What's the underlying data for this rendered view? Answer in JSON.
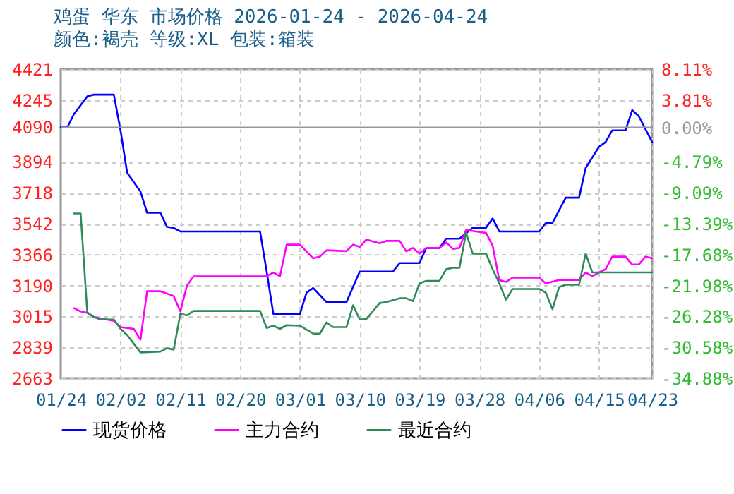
{
  "chart_data": {
    "type": "line",
    "title": "鸡蛋 华东 市场价格 2026-01-24 - 2026-04-24",
    "subtitle": "颜色:褐壳 等级:XL 包装:箱装",
    "xlim": [
      "2026-01-24",
      "2026-04-23"
    ],
    "xticks": [
      {
        "value": "2026-01-24",
        "label": "01/24"
      },
      {
        "value": "2026-02-02",
        "label": "02/02"
      },
      {
        "value": "2026-02-11",
        "label": "02/11"
      },
      {
        "value": "2026-02-20",
        "label": "02/20"
      },
      {
        "value": "2026-03-01",
        "label": "03/01"
      },
      {
        "value": "2026-03-10",
        "label": "03/10"
      },
      {
        "value": "2026-03-19",
        "label": "03/19"
      },
      {
        "value": "2026-03-28",
        "label": "03/28"
      },
      {
        "value": "2026-04-06",
        "label": "04/06"
      },
      {
        "value": "2026-04-15",
        "label": "04/15"
      },
      {
        "value": "2026-04-23",
        "label": "04/23"
      }
    ],
    "ylim": [
      2663,
      4421
    ],
    "yticks": [
      2663,
      2839,
      3015,
      3190,
      3366,
      3542,
      3718,
      3894,
      4090,
      4245,
      4421
    ],
    "y2lim": [
      -34.88,
      8.11
    ],
    "y2ticks": [
      {
        "value": -34.88,
        "label": "-34.88%"
      },
      {
        "value": -30.58,
        "label": "-30.58%"
      },
      {
        "value": -26.28,
        "label": "-26.28%"
      },
      {
        "value": -21.98,
        "label": "-21.98%"
      },
      {
        "value": -17.68,
        "label": "-17.68%"
      },
      {
        "value": -13.39,
        "label": "-13.39%"
      },
      {
        "value": -9.09,
        "label": "-9.09%"
      },
      {
        "value": -4.79,
        "label": "-4.79%"
      },
      {
        "value": 0,
        "label": "0.00%"
      },
      {
        "value": 3.81,
        "label": "3.81%"
      },
      {
        "value": 8.11,
        "label": "8.11%"
      }
    ],
    "ref_lines": [
      {
        "axis": "y2",
        "value": 0,
        "color": "#999999"
      }
    ],
    "grid": true,
    "legend": "bottom",
    "series": [
      {
        "name": "现货价格",
        "color": "#0000ff",
        "x": [
          "2026-01-24",
          "2026-01-25",
          "2026-01-26",
          "2026-01-28",
          "2026-01-29",
          "2026-02-01",
          "2026-02-02",
          "2026-02-03",
          "2026-02-05",
          "2026-02-06",
          "2026-02-08",
          "2026-02-09",
          "2026-02-10",
          "2026-02-11",
          "2026-02-23",
          "2026-02-24",
          "2026-02-25",
          "2026-03-01",
          "2026-03-02",
          "2026-03-03",
          "2026-03-05",
          "2026-03-08",
          "2026-03-10",
          "2026-03-15",
          "2026-03-16",
          "2026-03-19",
          "2026-03-20",
          "2026-03-22",
          "2026-03-23",
          "2026-03-25",
          "2026-03-27",
          "2026-03-29",
          "2026-03-30",
          "2026-03-31",
          "2026-04-06",
          "2026-04-07",
          "2026-04-08",
          "2026-04-10",
          "2026-04-12",
          "2026-04-13",
          "2026-04-15",
          "2026-04-16",
          "2026-04-17",
          "2026-04-19",
          "2026-04-20",
          "2026-04-21",
          "2026-04-23"
        ],
        "values": [
          4090,
          4090,
          4166,
          4266,
          4276,
          4276,
          4073,
          3832,
          3725,
          3604,
          3604,
          3524,
          3518,
          3498,
          3498,
          3270,
          3029,
          3029,
          3150,
          3176,
          3096,
          3096,
          3270,
          3270,
          3318,
          3318,
          3404,
          3404,
          3457,
          3457,
          3519,
          3519,
          3572,
          3498,
          3498,
          3546,
          3546,
          3690,
          3690,
          3859,
          3979,
          4006,
          4073,
          4073,
          4188,
          4153,
          4006
        ]
      },
      {
        "name": "主力合约",
        "color": "#ff00ff",
        "x": [
          "2026-01-26",
          "2026-01-27",
          "2026-01-28",
          "2026-01-29",
          "2026-02-01",
          "2026-02-02",
          "2026-02-04",
          "2026-02-05",
          "2026-02-06",
          "2026-02-08",
          "2026-02-10",
          "2026-02-11",
          "2026-02-12",
          "2026-02-13",
          "2026-02-24",
          "2026-02-25",
          "2026-02-26",
          "2026-02-27",
          "2026-03-01",
          "2026-03-03",
          "2026-03-04",
          "2026-03-05",
          "2026-03-08",
          "2026-03-09",
          "2026-03-10",
          "2026-03-11",
          "2026-03-13",
          "2026-03-14",
          "2026-03-16",
          "2026-03-17",
          "2026-03-18",
          "2026-03-19",
          "2026-03-20",
          "2026-03-22",
          "2026-03-23",
          "2026-03-24",
          "2026-03-25",
          "2026-03-26",
          "2026-03-29",
          "2026-03-30",
          "2026-03-31",
          "2026-04-01",
          "2026-04-02",
          "2026-04-06",
          "2026-04-07",
          "2026-04-09",
          "2026-04-12",
          "2026-04-13",
          "2026-04-14",
          "2026-04-15",
          "2026-04-16",
          "2026-04-17",
          "2026-04-19",
          "2026-04-20",
          "2026-04-21",
          "2026-04-22",
          "2026-04-23"
        ],
        "values": [
          3062,
          3043,
          3035,
          3011,
          2989,
          2954,
          2944,
          2882,
          3158,
          3158,
          3131,
          3043,
          3190,
          3243,
          3243,
          3265,
          3243,
          3423,
          3423,
          3345,
          3355,
          3391,
          3386,
          3423,
          3410,
          3452,
          3431,
          3444,
          3444,
          3385,
          3404,
          3372,
          3404,
          3404,
          3436,
          3399,
          3404,
          3506,
          3490,
          3417,
          3222,
          3211,
          3235,
          3235,
          3203,
          3222,
          3222,
          3265,
          3243,
          3265,
          3283,
          3355,
          3355,
          3310,
          3310,
          3355,
          3345
        ]
      },
      {
        "name": "最近合约",
        "color": "#2e8b57",
        "x": [
          "2026-01-26",
          "2026-01-27",
          "2026-01-28",
          "2026-01-29",
          "2026-01-30",
          "2026-02-01",
          "2026-02-02",
          "2026-02-03",
          "2026-02-05",
          "2026-02-08",
          "2026-02-09",
          "2026-02-10",
          "2026-02-11",
          "2026-02-12",
          "2026-02-13",
          "2026-02-23",
          "2026-02-24",
          "2026-02-25",
          "2026-02-26",
          "2026-02-27",
          "2026-03-01",
          "2026-03-03",
          "2026-03-04",
          "2026-03-05",
          "2026-03-06",
          "2026-03-08",
          "2026-03-09",
          "2026-03-10",
          "2026-03-11",
          "2026-03-13",
          "2026-03-14",
          "2026-03-16",
          "2026-03-17",
          "2026-03-18",
          "2026-03-19",
          "2026-03-20",
          "2026-03-22",
          "2026-03-23",
          "2026-03-24",
          "2026-03-25",
          "2026-03-26",
          "2026-03-27",
          "2026-03-29",
          "2026-03-30",
          "2026-03-31",
          "2026-04-01",
          "2026-04-02",
          "2026-04-06",
          "2026-04-07",
          "2026-04-08",
          "2026-04-09",
          "2026-04-10",
          "2026-04-12",
          "2026-04-13",
          "2026-04-14",
          "2026-04-23"
        ],
        "values": [
          3600,
          3600,
          3038,
          3011,
          2997,
          2997,
          2944,
          2909,
          2810,
          2815,
          2834,
          2826,
          3029,
          3021,
          3046,
          3046,
          2949,
          2962,
          2944,
          2965,
          2962,
          2917,
          2917,
          2981,
          2954,
          2954,
          3078,
          2997,
          3000,
          3091,
          3096,
          3118,
          3118,
          3102,
          3203,
          3217,
          3217,
          3283,
          3291,
          3291,
          3490,
          3372,
          3372,
          3283,
          3203,
          3110,
          3171,
          3171,
          3150,
          3056,
          3182,
          3195,
          3195,
          3372,
          3265,
          3265
        ]
      }
    ]
  }
}
